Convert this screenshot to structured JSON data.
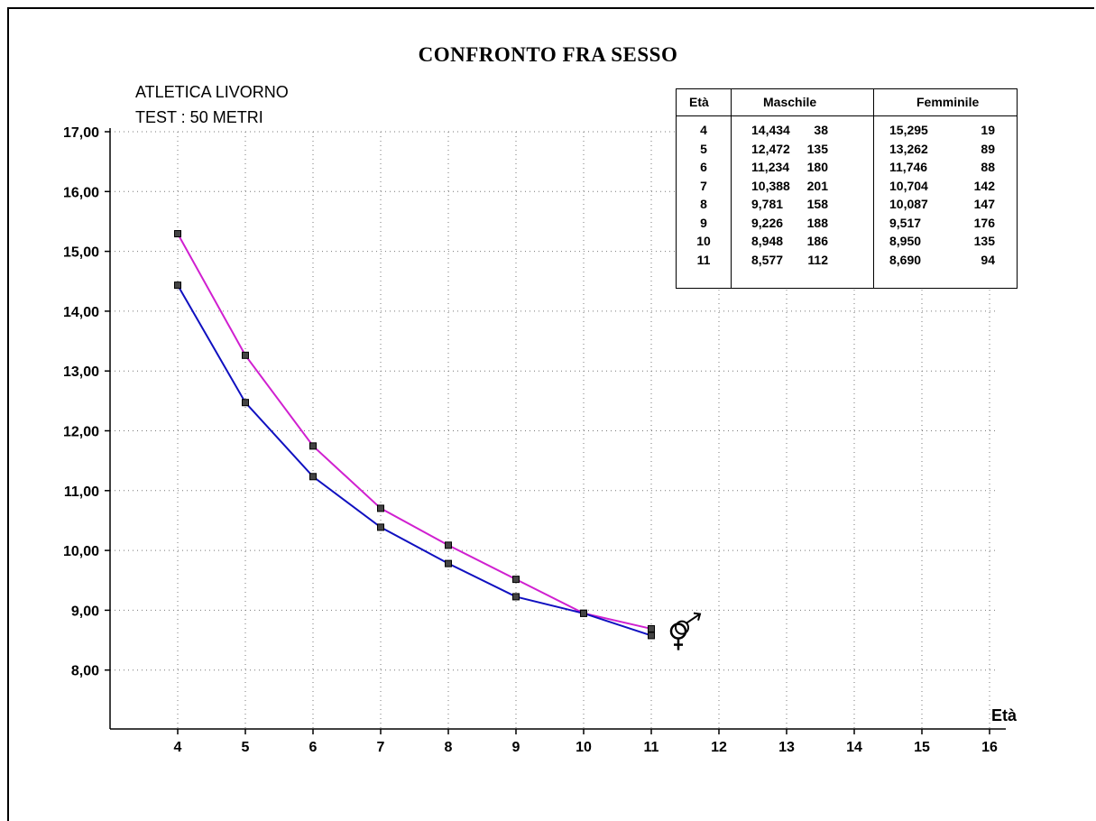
{
  "title": "CONFRONTO FRA SESSO",
  "subtitle_club": "ATLETICA LIVORNO",
  "subtitle_test": "TEST  :  50 METRI",
  "chart_data": {
    "type": "line",
    "xlabel": "Età",
    "ylabel": "",
    "x": [
      4,
      5,
      6,
      7,
      8,
      9,
      10,
      11
    ],
    "xlim": [
      3,
      16
    ],
    "xticks": [
      4,
      5,
      6,
      7,
      8,
      9,
      10,
      11,
      12,
      13,
      14,
      15,
      16
    ],
    "ylim": [
      7,
      17
    ],
    "yticks": [
      8,
      9,
      10,
      11,
      12,
      13,
      14,
      15,
      16,
      17
    ],
    "ytick_labels": [
      "8,00",
      "9,00",
      "10,00",
      "11,00",
      "12,00",
      "13,00",
      "14,00",
      "15,00",
      "16,00",
      "17,00"
    ],
    "grid": true,
    "series": [
      {
        "values": [
          14.434,
          12.472,
          11.234,
          10.388,
          9.781,
          9.226,
          8.948,
          8.577
        ],
        "color": "#1010c0"
      },
      {
        "values": [
          15.295,
          13.262,
          11.746,
          10.704,
          10.087,
          9.517,
          8.95,
          8.69
        ],
        "color": "#d020d0"
      }
    ],
    "end_marker_icon": "male-female-symbol-icon"
  },
  "table": {
    "headers": {
      "age": "Età",
      "male": "Maschile",
      "female": "Femminile"
    },
    "rows": [
      {
        "age": "4",
        "m_time": "14,434",
        "m_n": "38",
        "f_time": "15,295",
        "f_n": "19"
      },
      {
        "age": "5",
        "m_time": "12,472",
        "m_n": "135",
        "f_time": "13,262",
        "f_n": "89"
      },
      {
        "age": "6",
        "m_time": "11,234",
        "m_n": "180",
        "f_time": "11,746",
        "f_n": "88"
      },
      {
        "age": "7",
        "m_time": "10,388",
        "m_n": "201",
        "f_time": "10,704",
        "f_n": "142"
      },
      {
        "age": "8",
        "m_time": "9,781",
        "m_n": "158",
        "f_time": "10,087",
        "f_n": "147"
      },
      {
        "age": "9",
        "m_time": "9,226",
        "m_n": "188",
        "f_time": "9,517",
        "f_n": "176"
      },
      {
        "age": "10",
        "m_time": "8,948",
        "m_n": "186",
        "f_time": "8,950",
        "f_n": "135"
      },
      {
        "age": "11",
        "m_time": "8,577",
        "m_n": "112",
        "f_time": "8,690",
        "f_n": "94"
      }
    ]
  }
}
